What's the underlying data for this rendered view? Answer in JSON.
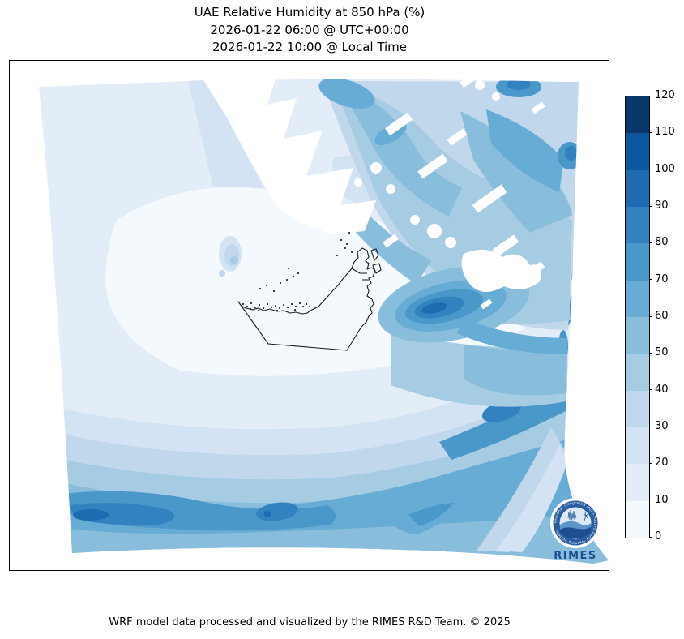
{
  "title": {
    "line1": "UAE Relative Humidity at 850 hPa (%)",
    "line2": "2026-01-22 06:00 @ UTC+00:00",
    "line3": "2026-01-22 10:00 @ Local Time"
  },
  "footer": {
    "credit": "WRF model data processed and visualized by the RIMES R&D Team. © 2025"
  },
  "colorbar": {
    "min": 0,
    "max": 120,
    "step": 10,
    "ticks": [
      "0",
      "10",
      "20",
      "30",
      "40",
      "50",
      "60",
      "70",
      "80",
      "90",
      "100",
      "110",
      "120"
    ],
    "colors": [
      "#f4f9fd",
      "#e3edf8",
      "#d3e3f3",
      "#c1d8ec",
      "#a6cce3",
      "#88bedc",
      "#67acd5",
      "#4a97ca",
      "#3182bf",
      "#1d6cb1",
      "#0c56a0",
      "#09386d"
    ]
  },
  "logo": {
    "ring_text": "Regional Integrated Multi-Hazard Early Warning System",
    "name": "RIMES",
    "accent": "#1c4f92"
  },
  "chart_data": {
    "type": "filled_contour_map",
    "variable": "Relative Humidity",
    "pressure_level": "850 hPa",
    "units": "%",
    "region": "UAE and surrounding WRF model domain (Arabian Gulf, Iran, Oman, Saudi Arabia)",
    "valid_time_utc": "2026-01-22 06:00 @ UTC+00:00",
    "valid_time_local": "2026-01-22 10:00 @ Local Time",
    "colormap": "Blues",
    "contour_levels": [
      0,
      10,
      20,
      30,
      40,
      50,
      60,
      70,
      80,
      90,
      100,
      110,
      120
    ],
    "colorbar_orientation": "vertical-right",
    "masked_areas": "white jagged patches over high terrain (north/center-top and northeast of domain)",
    "field_summary": [
      {
        "area": "central UAE and nearby Gulf waters",
        "rh_percent": "0-20"
      },
      {
        "area": "upper-left (northwest) of domain",
        "rh_percent": "10-30"
      },
      {
        "area": "northeast sector across the Gulf (Iran side)",
        "rh_percent": "30-90 with local maxima 80-100 near top edge and right edge"
      },
      {
        "area": "mountains just east/southeast of UAE",
        "rh_percent": "60-100 (compact dark maximum ~90-100)"
      },
      {
        "area": "southwest corner (bottom-left)",
        "rh_percent": "50-100 (band structure, darkest ~90-100 at corner)"
      },
      {
        "area": "southern/southeast sector (Oman side)",
        "rh_percent": "40-90 diagonal moist bands"
      }
    ]
  }
}
